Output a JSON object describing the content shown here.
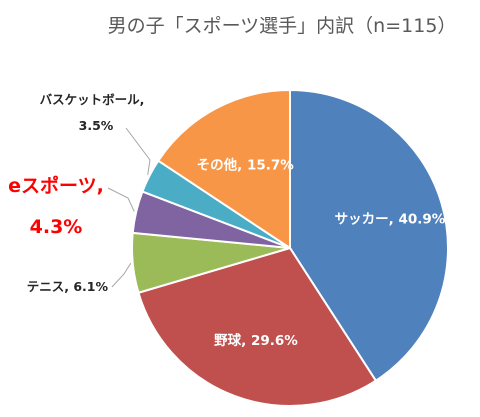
{
  "chart_data": {
    "type": "pie",
    "title": "男の子「スポーツ選手」内訳（n=115）",
    "slices": [
      {
        "label": "サッカー",
        "value": 40.9,
        "text": "40.9%",
        "color": "#4f81bd"
      },
      {
        "label": "野球",
        "value": 29.6,
        "text": "29.6%",
        "color": "#c0504d"
      },
      {
        "label": "テニス",
        "value": 6.1,
        "text": "6.1%",
        "color": "#9bbb59"
      },
      {
        "label": "eスポーツ",
        "value": 4.3,
        "text": "4.3%",
        "color": "#8064a2",
        "highlight_color": "#ff0000"
      },
      {
        "label": "バスケットボール",
        "value": 3.5,
        "text": "3.5%",
        "color": "#4bacc6"
      },
      {
        "label": "その他",
        "value": 15.7,
        "text": "15.7%",
        "color": "#f79646"
      }
    ],
    "start": "12 o'clock",
    "direction": "clockwise",
    "legend": "none"
  }
}
